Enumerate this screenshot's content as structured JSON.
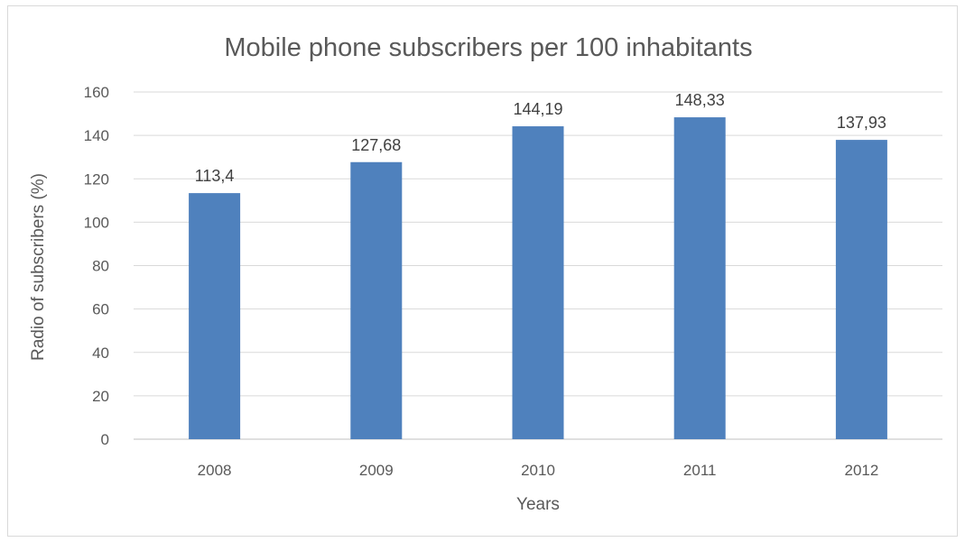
{
  "chart_data": {
    "type": "bar",
    "title": "Mobile phone subscribers per 100 inhabitants",
    "xlabel": "Years",
    "ylabel": "Radio of subscribers (%)",
    "categories": [
      "2008",
      "2009",
      "2010",
      "2011",
      "2012"
    ],
    "values": [
      113.4,
      127.68,
      144.19,
      148.33,
      137.93
    ],
    "data_labels": [
      "113,4",
      "127,68",
      "144,19",
      "148,33",
      "137,93"
    ],
    "y_ticks": [
      "0",
      "20",
      "40",
      "60",
      "80",
      "100",
      "120",
      "140",
      "160"
    ],
    "ylim": [
      0,
      160
    ],
    "grid": true,
    "legend": "none",
    "bar_color": "#4f81bd"
  }
}
